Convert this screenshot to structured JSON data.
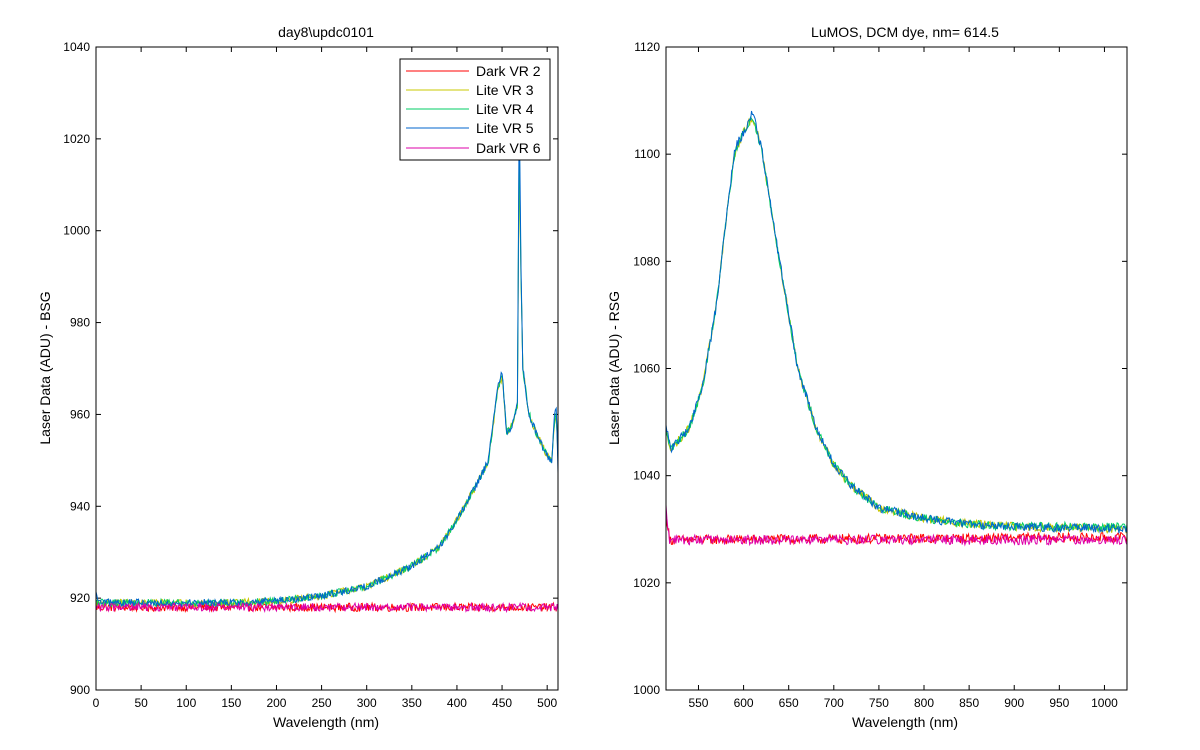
{
  "chart_data": [
    {
      "type": "line",
      "title": "day8\\updc0101",
      "xlabel": "Wavelength (nm)",
      "ylabel": "Laser Data (ADU) - BSG",
      "xlim": [
        0,
        512
      ],
      "ylim": [
        900,
        1040
      ],
      "xticks": [
        "0",
        "50",
        "100",
        "150",
        "200",
        "250",
        "300",
        "350",
        "400",
        "450",
        "500"
      ],
      "yticks": [
        "900",
        "920",
        "940",
        "960",
        "980",
        "1000",
        "1020",
        "1040"
      ],
      "grid": false,
      "legend": {
        "placement": "top-right",
        "entries": [
          "Dark VR 2",
          "Lite VR 3",
          "Lite VR 4",
          "Lite VR 5",
          "Dark VR 6"
        ]
      },
      "series": [
        {
          "name": "Dark VR 2",
          "color": "#ff0000",
          "baseline": 918,
          "noise": 0.9,
          "points": [
            [
              0,
              918
            ],
            [
              512,
              918
            ]
          ]
        },
        {
          "name": "Lite VR 3",
          "color": "#c8c800",
          "noise": 0.8,
          "points": [
            [
              0,
              919
            ],
            [
              150,
              919
            ],
            [
              200,
              919.3
            ],
            [
              250,
              920.5
            ],
            [
              300,
              922.5
            ],
            [
              350,
              927
            ],
            [
              380,
              931
            ],
            [
              400,
              937
            ],
            [
              420,
              944
            ],
            [
              435,
              950
            ],
            [
              445,
              965
            ],
            [
              450,
              968
            ],
            [
              455,
              956
            ],
            [
              462,
              958
            ],
            [
              467,
              962
            ],
            [
              469,
              1015
            ],
            [
              471,
              990
            ],
            [
              473,
              970
            ],
            [
              480,
              960
            ],
            [
              490,
              955
            ],
            [
              500,
              951
            ],
            [
              505,
              950
            ],
            [
              508,
              958
            ],
            [
              510,
              960
            ],
            [
              512,
              950
            ]
          ]
        },
        {
          "name": "Lite VR 4",
          "color": "#00cc66",
          "noise": 0.8,
          "points": [
            [
              0,
              919
            ],
            [
              150,
              919
            ],
            [
              200,
              919.3
            ],
            [
              250,
              920.5
            ],
            [
              300,
              922.5
            ],
            [
              350,
              927
            ],
            [
              380,
              931
            ],
            [
              400,
              937
            ],
            [
              420,
              944
            ],
            [
              435,
              950
            ],
            [
              445,
              965
            ],
            [
              450,
              969
            ],
            [
              455,
              956
            ],
            [
              462,
              958
            ],
            [
              467,
              962
            ],
            [
              469,
              1020
            ],
            [
              471,
              990
            ],
            [
              473,
              970
            ],
            [
              480,
              960
            ],
            [
              490,
              955
            ],
            [
              500,
              951
            ],
            [
              505,
              950
            ],
            [
              508,
              958
            ],
            [
              510,
              961
            ],
            [
              512,
              950
            ]
          ]
        },
        {
          "name": "Lite VR 5",
          "color": "#0066cc",
          "noise": 0.8,
          "points": [
            [
              0,
              921
            ],
            [
              3,
              919
            ],
            [
              150,
              919
            ],
            [
              200,
              919.3
            ],
            [
              250,
              920.5
            ],
            [
              300,
              922.5
            ],
            [
              350,
              927
            ],
            [
              380,
              931
            ],
            [
              400,
              937
            ],
            [
              420,
              944
            ],
            [
              435,
              950
            ],
            [
              445,
              966
            ],
            [
              450,
              969
            ],
            [
              455,
              956
            ],
            [
              462,
              958
            ],
            [
              467,
              962
            ],
            [
              469,
              1027
            ],
            [
              471,
              992
            ],
            [
              473,
              970
            ],
            [
              480,
              960
            ],
            [
              490,
              955
            ],
            [
              500,
              951
            ],
            [
              505,
              950
            ],
            [
              508,
              960
            ],
            [
              510,
              962
            ],
            [
              512,
              948
            ]
          ]
        },
        {
          "name": "Dark VR 6",
          "color": "#dd00aa",
          "baseline": 918,
          "noise": 0.9,
          "points": [
            [
              0,
              918
            ],
            [
              512,
              918
            ]
          ]
        }
      ]
    },
    {
      "type": "line",
      "title": "LuMOS, DCM dye, nm= 614.5",
      "xlabel": "Wavelength (nm)",
      "ylabel": "Laser Data (ADU) - RSG",
      "xlim": [
        514,
        1025
      ],
      "ylim": [
        1000,
        1120
      ],
      "xticks": [
        "550",
        "600",
        "650",
        "700",
        "750",
        "800",
        "850",
        "900",
        "950",
        "1000"
      ],
      "yticks": [
        "1000",
        "1020",
        "1040",
        "1060",
        "1080",
        "1100",
        "1120"
      ],
      "grid": false,
      "legend": null,
      "series": [
        {
          "name": "",
          "color": "#ff0000",
          "noise": 0.9,
          "points": [
            [
              514,
              1033
            ],
            [
              518,
              1028
            ],
            [
              1025,
              1028.5
            ]
          ]
        },
        {
          "name": "",
          "color": "#c8c800",
          "noise": 0.8,
          "points": [
            [
              514,
              1048
            ],
            [
              520,
              1045
            ],
            [
              540,
              1049
            ],
            [
              555,
              1057
            ],
            [
              570,
              1072
            ],
            [
              580,
              1087
            ],
            [
              590,
              1100
            ],
            [
              600,
              1104
            ],
            [
              610,
              1107
            ],
            [
              620,
              1101
            ],
            [
              640,
              1080
            ],
            [
              660,
              1060
            ],
            [
              680,
              1049
            ],
            [
              700,
              1042
            ],
            [
              720,
              1038
            ],
            [
              750,
              1034
            ],
            [
              800,
              1032
            ],
            [
              850,
              1031
            ],
            [
              900,
              1030.5
            ],
            [
              1025,
              1030
            ]
          ]
        },
        {
          "name": "",
          "color": "#00cc66",
          "noise": 0.8,
          "points": [
            [
              514,
              1048
            ],
            [
              520,
              1045
            ],
            [
              540,
              1049
            ],
            [
              555,
              1057
            ],
            [
              570,
              1072
            ],
            [
              580,
              1087
            ],
            [
              590,
              1100
            ],
            [
              600,
              1104
            ],
            [
              610,
              1107
            ],
            [
              620,
              1101
            ],
            [
              640,
              1080
            ],
            [
              660,
              1060
            ],
            [
              680,
              1049
            ],
            [
              700,
              1042
            ],
            [
              720,
              1038
            ],
            [
              750,
              1034
            ],
            [
              800,
              1032
            ],
            [
              850,
              1031
            ],
            [
              900,
              1030.5
            ],
            [
              1025,
              1030.5
            ]
          ]
        },
        {
          "name": "",
          "color": "#0066cc",
          "noise": 0.8,
          "points": [
            [
              514,
              1049
            ],
            [
              520,
              1045
            ],
            [
              540,
              1049
            ],
            [
              555,
              1057
            ],
            [
              570,
              1072
            ],
            [
              580,
              1087
            ],
            [
              590,
              1101
            ],
            [
              600,
              1104
            ],
            [
              610,
              1108
            ],
            [
              620,
              1101
            ],
            [
              640,
              1080
            ],
            [
              660,
              1060
            ],
            [
              680,
              1049
            ],
            [
              700,
              1042
            ],
            [
              720,
              1038
            ],
            [
              750,
              1034
            ],
            [
              800,
              1032
            ],
            [
              850,
              1031
            ],
            [
              900,
              1030.5
            ],
            [
              1025,
              1030
            ]
          ]
        },
        {
          "name": "",
          "color": "#dd00aa",
          "noise": 0.9,
          "points": [
            [
              514,
              1034
            ],
            [
              518,
              1028
            ],
            [
              1025,
              1028
            ]
          ]
        }
      ]
    }
  ]
}
